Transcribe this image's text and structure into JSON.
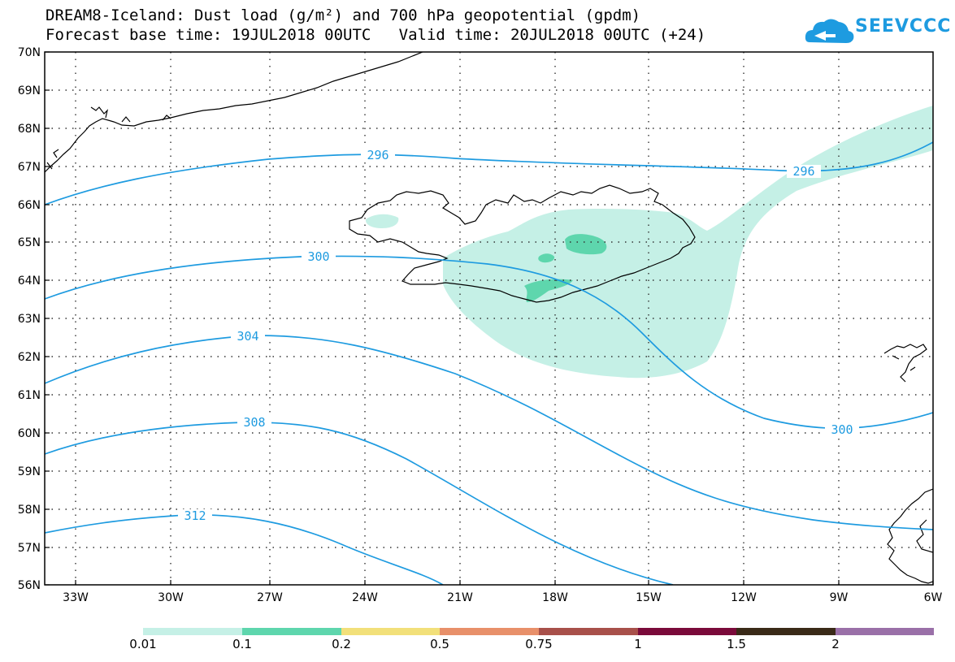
{
  "title": {
    "line1": "DREAM8-Iceland: Dust load (g/m²) and 700 hPa geopotential (gpdm)",
    "line2": "Forecast base time: 19JUL2018 00UTC   Valid time: 20JUL2018 00UTC (+24)"
  },
  "logo": {
    "text": "SEEVCCC"
  },
  "axes": {
    "lat_labels": [
      "70N",
      "69N",
      "68N",
      "67N",
      "66N",
      "65N",
      "64N",
      "63N",
      "62N",
      "61N",
      "60N",
      "59N",
      "58N",
      "57N",
      "56N"
    ],
    "lon_labels": [
      "33W",
      "30W",
      "27W",
      "24W",
      "21W",
      "18W",
      "15W",
      "12W",
      "9W",
      "6W"
    ]
  },
  "contours": {
    "labels": [
      "296",
      "296",
      "300",
      "300",
      "304",
      "308",
      "312"
    ]
  },
  "colorbar": {
    "labels": [
      "0.01",
      "0.1",
      "0.2",
      "0.5",
      "0.75",
      "1",
      "1.5",
      "2"
    ],
    "colors": [
      "#c5f0e6",
      "#5ed6ad",
      "#f2e07a",
      "#e8906a",
      "#a8504a",
      "#7a0a3a",
      "#3a2a18",
      "#9a70a8"
    ]
  },
  "colors": {
    "contour": "#1e9be0",
    "coast": "#000000",
    "dust_light": "#c5f0e6",
    "dust_mid": "#5ed6ad"
  }
}
